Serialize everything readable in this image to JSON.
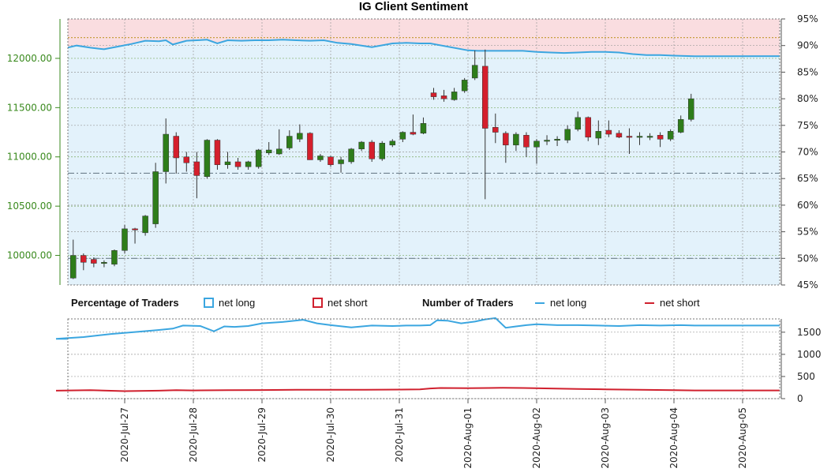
{
  "colors": {
    "long_line": "#3ba6e0",
    "short_line": "#d0202e",
    "long_fill": "#e3f2fb",
    "short_fill": "#fadde0",
    "up_candle": "#2e7d1a",
    "down_candle": "#d41f2c",
    "price_axis": "#3a8a1e"
  },
  "chart_data": [
    {
      "type": "candlestick",
      "title": "IG Client Sentiment",
      "ylim": [
        9700,
        12400
      ],
      "y_ticks": [
        10000,
        10500,
        11000,
        11500,
        12000
      ],
      "y_tick_labels": [
        "10000.00",
        "10500.00",
        "11000.00",
        "11500.00",
        "12000.00"
      ],
      "y2lim": [
        45,
        95
      ],
      "y2_ticks": [
        45,
        50,
        55,
        60,
        65,
        70,
        75,
        80,
        85,
        90,
        95
      ],
      "y2_tick_labels": [
        "45%",
        "50%",
        "55%",
        "60%",
        "65%",
        "70%",
        "75%",
        "80%",
        "85%",
        "90%",
        "95%"
      ],
      "x_tick_labels": [
        "2020-Jul-27",
        "2020-Jul-28",
        "2020-Jul-29",
        "2020-Jul-30",
        "2020-Jul-31",
        "2020-Aug-01",
        "2020-Aug-02",
        "2020-Aug-03",
        "2020-Aug-04",
        "2020-Aug-05"
      ],
      "grid": true,
      "reference_levels_pct": [
        50,
        66,
        91.5
      ],
      "candles": [
        {
          "x": 0.1,
          "o": 9780,
          "h": 9800,
          "l": 9760,
          "c": 9770
        },
        {
          "x": 0.25,
          "o": 9770,
          "h": 10160,
          "l": 9760,
          "c": 10000
        },
        {
          "x": 0.4,
          "o": 10000,
          "h": 10020,
          "l": 9850,
          "c": 9930
        },
        {
          "x": 0.55,
          "o": 9960,
          "h": 9980,
          "l": 9880,
          "c": 9920
        },
        {
          "x": 0.7,
          "o": 9920,
          "h": 9950,
          "l": 9880,
          "c": 9930
        },
        {
          "x": 0.85,
          "o": 9910,
          "h": 10060,
          "l": 9890,
          "c": 10050
        },
        {
          "x": 1.0,
          "o": 10050,
          "h": 10310,
          "l": 10020,
          "c": 10270
        },
        {
          "x": 1.15,
          "o": 10270,
          "h": 10280,
          "l": 10120,
          "c": 10260
        },
        {
          "x": 1.3,
          "o": 10230,
          "h": 10410,
          "l": 10200,
          "c": 10400
        },
        {
          "x": 1.45,
          "o": 10320,
          "h": 10940,
          "l": 10280,
          "c": 10850
        },
        {
          "x": 1.6,
          "o": 10850,
          "h": 11390,
          "l": 10730,
          "c": 11230
        },
        {
          "x": 1.75,
          "o": 11210,
          "h": 11250,
          "l": 10830,
          "c": 10990
        },
        {
          "x": 1.9,
          "o": 11000,
          "h": 11050,
          "l": 10850,
          "c": 10940
        },
        {
          "x": 2.05,
          "o": 10950,
          "h": 11050,
          "l": 10580,
          "c": 10810
        },
        {
          "x": 2.2,
          "o": 10800,
          "h": 11180,
          "l": 10780,
          "c": 11170
        },
        {
          "x": 2.35,
          "o": 11170,
          "h": 11180,
          "l": 10870,
          "c": 10920
        },
        {
          "x": 2.5,
          "o": 10920,
          "h": 11050,
          "l": 10880,
          "c": 10950
        },
        {
          "x": 2.65,
          "o": 10950,
          "h": 10990,
          "l": 10870,
          "c": 10900
        },
        {
          "x": 2.8,
          "o": 10900,
          "h": 10960,
          "l": 10870,
          "c": 10950
        },
        {
          "x": 2.95,
          "o": 10900,
          "h": 11080,
          "l": 10880,
          "c": 11070
        },
        {
          "x": 3.1,
          "o": 11040,
          "h": 11150,
          "l": 11020,
          "c": 11070
        },
        {
          "x": 3.25,
          "o": 11030,
          "h": 11280,
          "l": 11020,
          "c": 11080
        },
        {
          "x": 3.4,
          "o": 11090,
          "h": 11270,
          "l": 11070,
          "c": 11210
        },
        {
          "x": 3.55,
          "o": 11180,
          "h": 11330,
          "l": 11150,
          "c": 11240
        },
        {
          "x": 3.7,
          "o": 11240,
          "h": 11250,
          "l": 10970,
          "c": 10970
        },
        {
          "x": 3.85,
          "o": 10970,
          "h": 11030,
          "l": 10950,
          "c": 11010
        },
        {
          "x": 4.0,
          "o": 11000,
          "h": 11010,
          "l": 10900,
          "c": 10920
        },
        {
          "x": 4.15,
          "o": 10930,
          "h": 11000,
          "l": 10840,
          "c": 10970
        },
        {
          "x": 4.3,
          "o": 10950,
          "h": 11090,
          "l": 10930,
          "c": 11080
        },
        {
          "x": 4.45,
          "o": 11080,
          "h": 11160,
          "l": 11060,
          "c": 11150
        },
        {
          "x": 4.6,
          "o": 11150,
          "h": 11170,
          "l": 10950,
          "c": 10980
        },
        {
          "x": 4.75,
          "o": 10980,
          "h": 11160,
          "l": 10960,
          "c": 11140
        },
        {
          "x": 4.9,
          "o": 11120,
          "h": 11180,
          "l": 11100,
          "c": 11160
        },
        {
          "x": 5.05,
          "o": 11180,
          "h": 11260,
          "l": 11150,
          "c": 11250
        },
        {
          "x": 5.2,
          "o": 11250,
          "h": 11430,
          "l": 11220,
          "c": 11230
        },
        {
          "x": 5.35,
          "o": 11240,
          "h": 11400,
          "l": 11230,
          "c": 11340
        },
        {
          "x": 5.5,
          "o": 11650,
          "h": 11700,
          "l": 11580,
          "c": 11610
        },
        {
          "x": 5.65,
          "o": 11620,
          "h": 11680,
          "l": 11560,
          "c": 11590
        },
        {
          "x": 5.8,
          "o": 11580,
          "h": 11700,
          "l": 11570,
          "c": 11660
        },
        {
          "x": 5.95,
          "o": 11670,
          "h": 11800,
          "l": 11650,
          "c": 11780
        },
        {
          "x": 6.1,
          "o": 11800,
          "h": 12080,
          "l": 11780,
          "c": 11930
        },
        {
          "x": 6.25,
          "o": 11920,
          "h": 12090,
          "l": 10570,
          "c": 11290
        },
        {
          "x": 6.4,
          "o": 11300,
          "h": 11440,
          "l": 11140,
          "c": 11250
        },
        {
          "x": 6.55,
          "o": 11240,
          "h": 11260,
          "l": 10940,
          "c": 11120
        },
        {
          "x": 6.7,
          "o": 11120,
          "h": 11250,
          "l": 11060,
          "c": 11230
        },
        {
          "x": 6.85,
          "o": 11220,
          "h": 11250,
          "l": 11000,
          "c": 11100
        },
        {
          "x": 7.0,
          "o": 11100,
          "h": 11180,
          "l": 10930,
          "c": 11160
        },
        {
          "x": 7.15,
          "o": 11160,
          "h": 11220,
          "l": 11120,
          "c": 11170
        },
        {
          "x": 7.3,
          "o": 11170,
          "h": 11210,
          "l": 11110,
          "c": 11180
        },
        {
          "x": 7.45,
          "o": 11170,
          "h": 11320,
          "l": 11140,
          "c": 11280
        },
        {
          "x": 7.6,
          "o": 11280,
          "h": 11460,
          "l": 11260,
          "c": 11400
        },
        {
          "x": 7.75,
          "o": 11400,
          "h": 11410,
          "l": 11160,
          "c": 11200
        },
        {
          "x": 7.9,
          "o": 11190,
          "h": 11370,
          "l": 11120,
          "c": 11260
        },
        {
          "x": 8.05,
          "o": 11270,
          "h": 11370,
          "l": 11200,
          "c": 11230
        },
        {
          "x": 8.2,
          "o": 11240,
          "h": 11270,
          "l": 11190,
          "c": 11200
        },
        {
          "x": 8.35,
          "o": 11210,
          "h": 11290,
          "l": 11030,
          "c": 11200
        },
        {
          "x": 8.5,
          "o": 11200,
          "h": 11250,
          "l": 11120,
          "c": 11210
        },
        {
          "x": 8.65,
          "o": 11200,
          "h": 11240,
          "l": 11170,
          "c": 11210
        },
        {
          "x": 8.8,
          "o": 11220,
          "h": 11250,
          "l": 11100,
          "c": 11180
        },
        {
          "x": 8.95,
          "o": 11180,
          "h": 11280,
          "l": 11160,
          "c": 11260
        },
        {
          "x": 9.1,
          "o": 11250,
          "h": 11420,
          "l": 11240,
          "c": 11380
        },
        {
          "x": 9.25,
          "o": 11380,
          "h": 11640,
          "l": 11360,
          "c": 11590
        }
      ],
      "net_long_pct": {
        "x": [
          0,
          0.1,
          0.3,
          0.5,
          0.7,
          0.9,
          1.1,
          1.3,
          1.5,
          1.6,
          1.7,
          1.9,
          2.05,
          2.2,
          2.35,
          2.5,
          2.7,
          2.9,
          3.1,
          3.3,
          3.5,
          3.7,
          3.9,
          4.1,
          4.3,
          4.6,
          4.9,
          5.1,
          5.3,
          5.45,
          6.0,
          6.15,
          6.35,
          6.5,
          6.6,
          6.8,
          7.0,
          7.2,
          7.4,
          7.6,
          7.8,
          8.0,
          8.2,
          8.4,
          8.6,
          8.8,
          9.0,
          9.3
        ],
        "y": [
          89.5,
          89.4,
          90.0,
          89.6,
          89.3,
          89.8,
          90.3,
          90.9,
          90.8,
          91.0,
          90.2,
          90.9,
          91.0,
          91.1,
          90.4,
          91.0,
          90.9,
          91.0,
          91.0,
          91.1,
          91.0,
          90.9,
          91.0,
          90.5,
          90.3,
          89.7,
          90.4,
          90.5,
          90.4,
          90.4,
          89.1,
          89.0,
          89.0,
          89.0,
          89.0,
          89.0,
          88.8,
          88.7,
          88.6,
          88.7,
          88.8,
          88.8,
          88.7,
          88.4,
          88.2,
          88.2,
          88.1,
          88.0
        ]
      }
    },
    {
      "type": "line",
      "ylim": [
        0,
        1800
      ],
      "y_ticks": [
        0,
        500,
        1000,
        1500
      ],
      "y_tick_labels": [
        "0",
        "500",
        "1000",
        "1500"
      ],
      "legend": {
        "pct_title": "Percentage of Traders",
        "num_title": "Number of Traders",
        "pct_long": "net long",
        "pct_short": "net short",
        "num_long": "net long",
        "num_short": "net short"
      },
      "series": [
        {
          "name": "net long",
          "x": [
            0,
            0.4,
            0.8,
            1.2,
            1.5,
            1.7,
            1.85,
            2.1,
            2.3,
            2.45,
            2.6,
            2.8,
            3.0,
            3.3,
            3.6,
            3.8,
            4.0,
            4.3,
            4.6,
            4.9,
            5.1,
            5.3,
            5.45,
            5.55,
            5.7,
            5.9,
            6.1,
            6.25,
            6.4,
            6.55,
            6.7,
            6.85,
            7.0,
            7.3,
            7.6,
            7.9,
            8.2,
            8.5,
            8.8,
            9.1,
            9.3
          ],
          "y": [
            1350,
            1390,
            1460,
            1510,
            1550,
            1580,
            1650,
            1640,
            1520,
            1630,
            1620,
            1640,
            1700,
            1730,
            1780,
            1700,
            1660,
            1610,
            1650,
            1640,
            1650,
            1650,
            1660,
            1770,
            1760,
            1700,
            1740,
            1790,
            1820,
            1600,
            1630,
            1660,
            1680,
            1660,
            1660,
            1650,
            1640,
            1660,
            1650,
            1660,
            1650
          ]
        },
        {
          "name": "net short",
          "x": [
            0,
            0.5,
            1.0,
            1.5,
            1.75,
            2.0,
            2.5,
            3.0,
            3.5,
            4.0,
            4.5,
            5.0,
            5.3,
            5.45,
            5.6,
            6.0,
            6.3,
            6.5,
            6.8,
            7.2,
            7.6,
            8.0,
            8.5,
            9.0,
            9.3
          ],
          "y": [
            180,
            190,
            170,
            180,
            190,
            185,
            190,
            195,
            200,
            200,
            200,
            205,
            210,
            230,
            240,
            235,
            240,
            245,
            240,
            230,
            220,
            210,
            200,
            190,
            185
          ]
        }
      ]
    }
  ]
}
